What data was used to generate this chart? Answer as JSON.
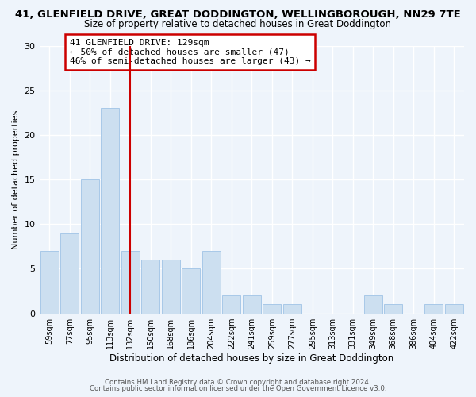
{
  "title": "41, GLENFIELD DRIVE, GREAT DODDINGTON, WELLINGBOROUGH, NN29 7TE",
  "subtitle": "Size of property relative to detached houses in Great Doddington",
  "xlabel": "Distribution of detached houses by size in Great Doddington",
  "ylabel": "Number of detached properties",
  "bar_labels": [
    "59sqm",
    "77sqm",
    "95sqm",
    "113sqm",
    "132sqm",
    "150sqm",
    "168sqm",
    "186sqm",
    "204sqm",
    "222sqm",
    "241sqm",
    "259sqm",
    "277sqm",
    "295sqm",
    "313sqm",
    "331sqm",
    "349sqm",
    "368sqm",
    "386sqm",
    "404sqm",
    "422sqm"
  ],
  "bar_values": [
    7,
    9,
    15,
    23,
    7,
    6,
    6,
    5,
    7,
    2,
    2,
    1,
    1,
    0,
    0,
    0,
    2,
    1,
    0,
    1,
    1
  ],
  "bar_color": "#ccdff0",
  "bar_edge_color": "#a8c8e8",
  "vline_x": 4,
  "vline_color": "#cc0000",
  "annotation_text": "41 GLENFIELD DRIVE: 129sqm\n← 50% of detached houses are smaller (47)\n46% of semi-detached houses are larger (43) →",
  "annotation_box_color": "#ffffff",
  "annotation_box_edge_color": "#cc0000",
  "ylim": [
    0,
    30
  ],
  "yticks": [
    0,
    5,
    10,
    15,
    20,
    25,
    30
  ],
  "footer_line1": "Contains HM Land Registry data © Crown copyright and database right 2024.",
  "footer_line2": "Contains public sector information licensed under the Open Government Licence v3.0.",
  "background_color": "#eef4fb",
  "grid_color": "#ffffff"
}
